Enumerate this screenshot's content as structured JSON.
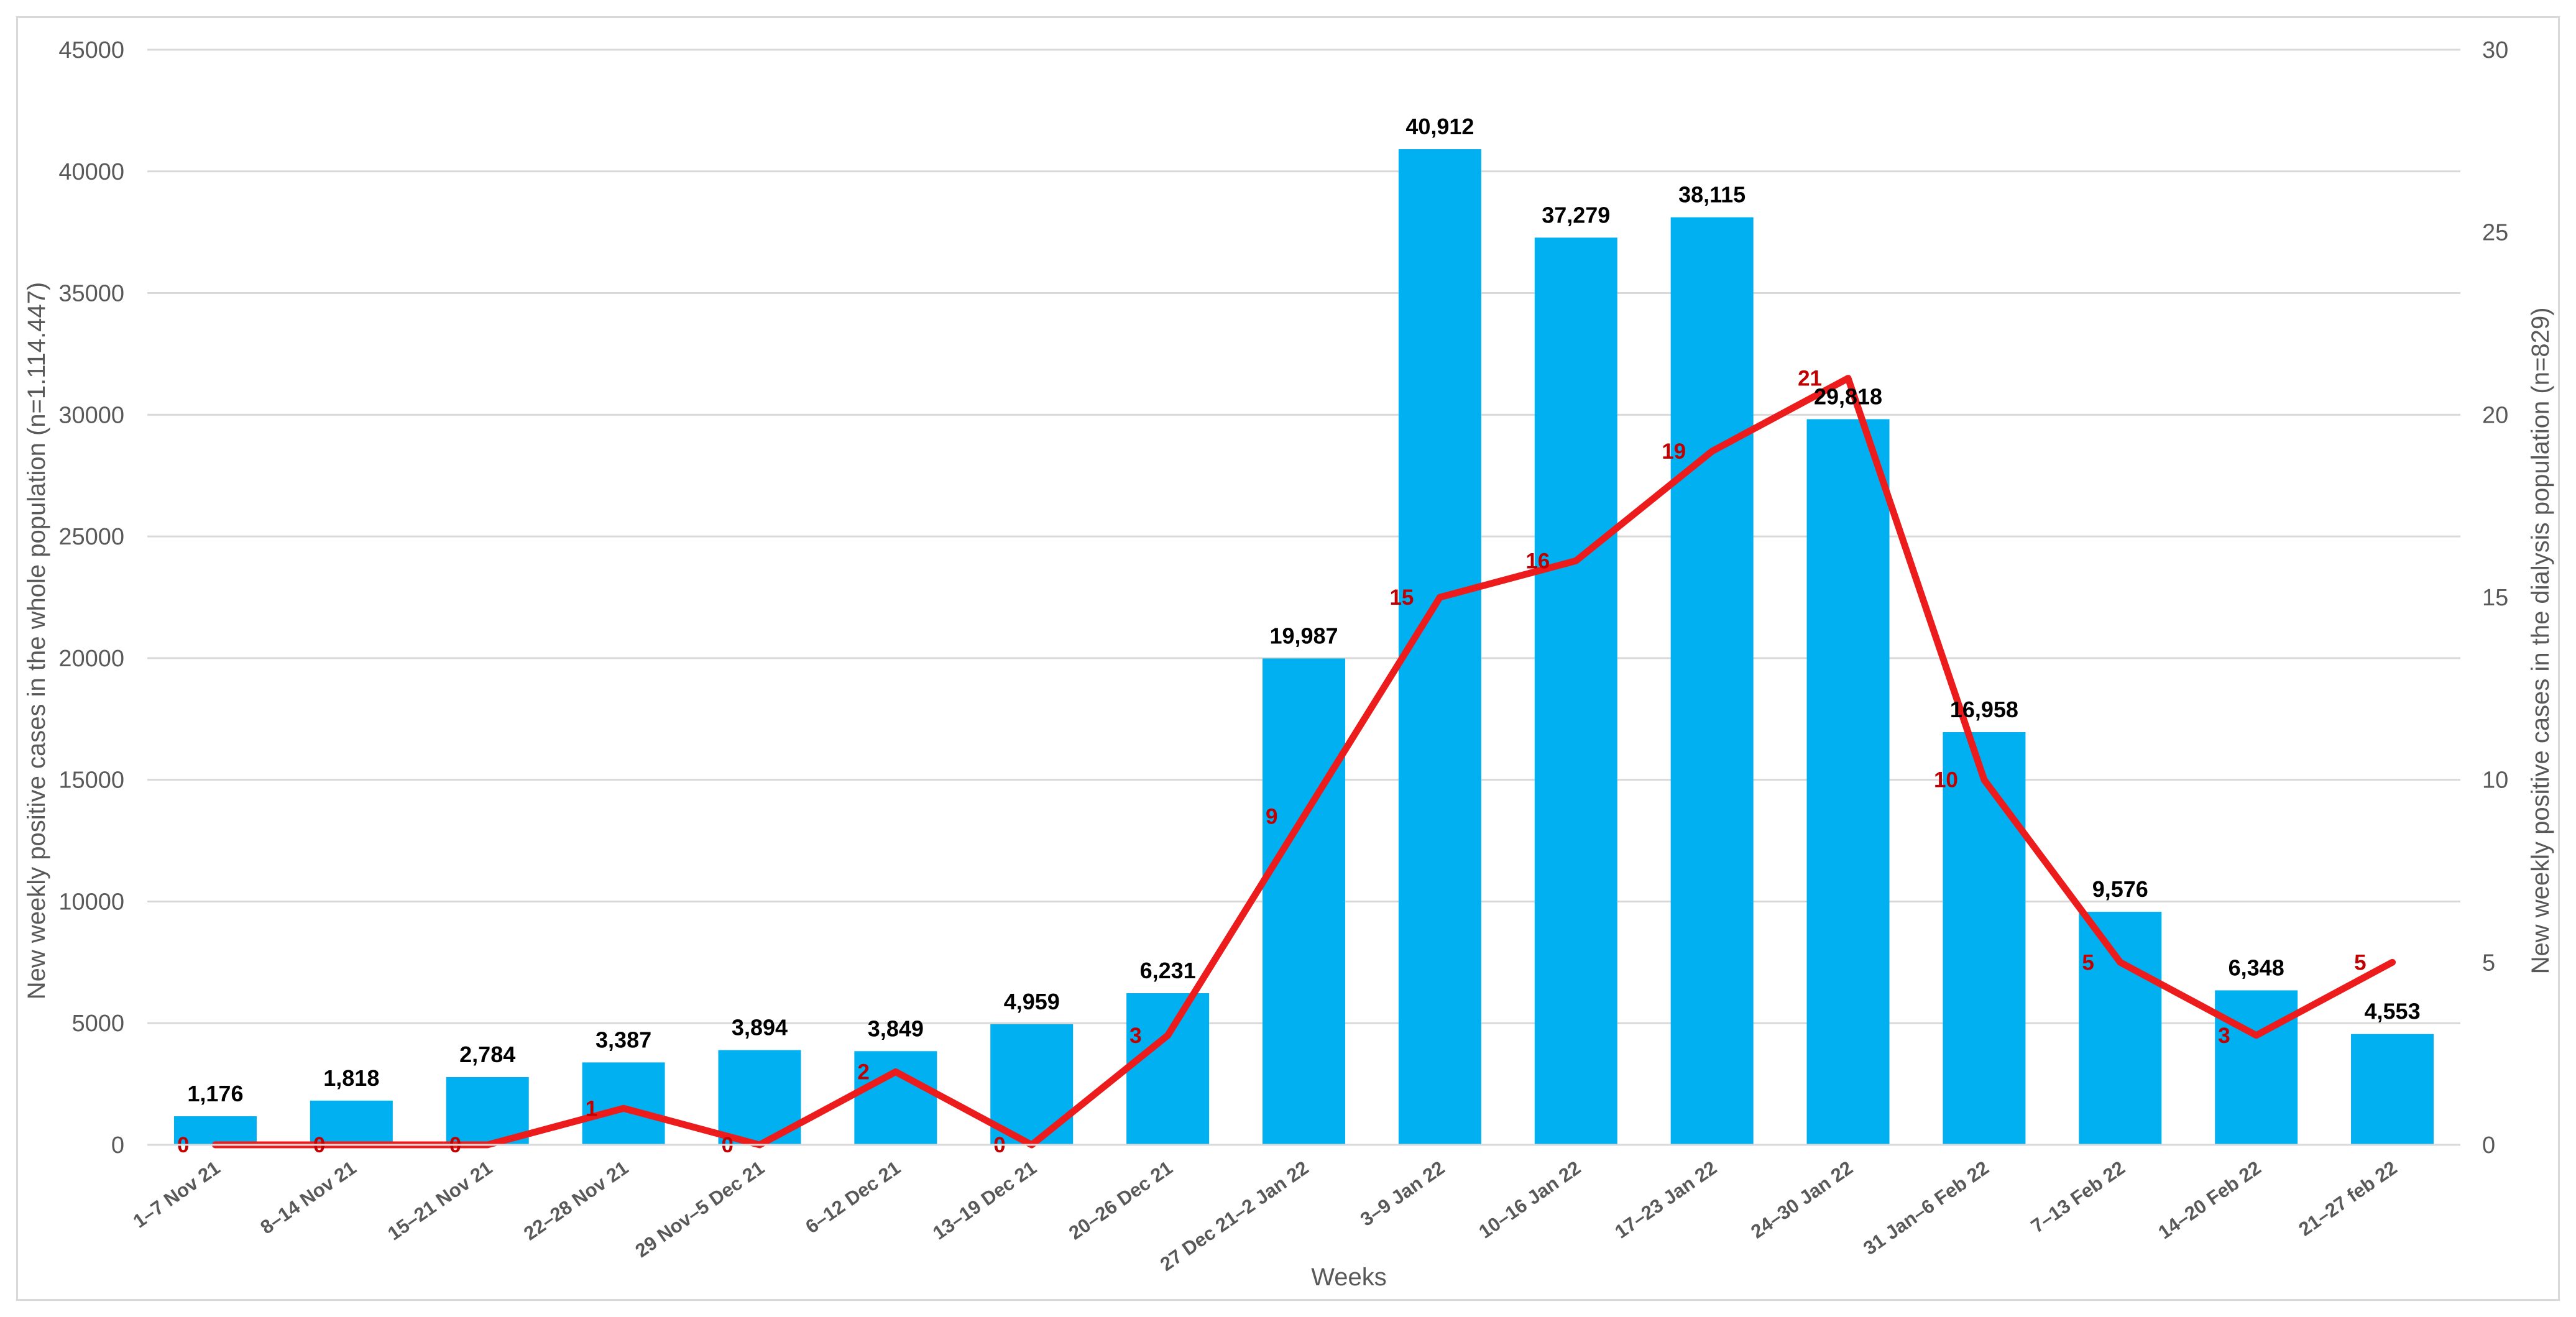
{
  "chart_data": {
    "type": "bar",
    "categories": [
      "1–7 Nov 21",
      "8–14 Nov 21",
      "15–21 Nov 21",
      "22–28 Nov 21",
      "29 Nov–5 Dec 21",
      "6–12 Dec 21",
      "13–19  Dec 21",
      "20–26 Dec 21",
      "27 Dec 21–2 Jan 22",
      "3–9 Jan 22",
      "10–16 Jan 22",
      "17–23 Jan 22",
      "24–30 Jan 22",
      "31 Jan–6 Feb 22",
      "7–13 Feb 22",
      "14–20 Feb 22",
      "21–27 feb 22"
    ],
    "series": [
      {
        "type": "bar",
        "axis": "left",
        "color": "#00b0f0",
        "values": [
          1176,
          1818,
          2784,
          3387,
          3894,
          3849,
          4959,
          6231,
          19987,
          40912,
          37279,
          38115,
          29818,
          16958,
          9576,
          6348,
          4553
        ],
        "data_labels": [
          "1,176",
          "1,818",
          "2,784",
          "3,387",
          "3,894",
          "3,849",
          "4,959",
          "6,231",
          "19,987",
          "40,912",
          "37,279",
          "38,115",
          "29,818",
          "16,958",
          "9,576",
          "6,348",
          "4,553"
        ]
      },
      {
        "type": "line",
        "axis": "right",
        "color": "#ed1c1c",
        "label_color": "#c00000",
        "values": [
          0,
          0,
          0,
          1,
          0,
          2,
          0,
          3,
          9,
          15,
          16,
          19,
          21,
          10,
          5,
          3,
          5
        ],
        "data_labels": [
          "0",
          "0",
          "0",
          "1",
          "0",
          "2",
          "0",
          "3",
          "9",
          "15",
          "16",
          "19",
          "21",
          "10",
          "5",
          "3",
          "5"
        ]
      }
    ],
    "xlabel": "Weeks",
    "ylabel": "New weekly positive cases in the whole population (n=1.114.447)",
    "y2label": "New weekly positive cases in the dialysis population (n=829)",
    "ylim": [
      0,
      45000
    ],
    "y2lim": [
      0,
      30
    ],
    "yticks": [
      "0",
      "5000",
      "10000",
      "15000",
      "20000",
      "25000",
      "30000",
      "35000",
      "40000",
      "45000"
    ],
    "y2ticks": [
      "0",
      "5",
      "10",
      "15",
      "20",
      "25",
      "30"
    ],
    "grid": true,
    "legend": "none"
  }
}
